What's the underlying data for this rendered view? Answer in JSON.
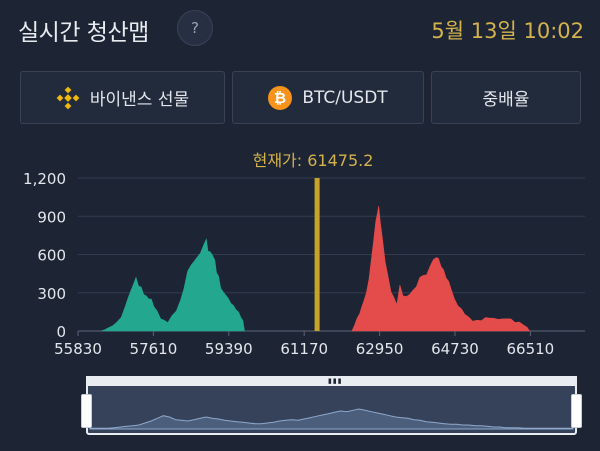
{
  "header": {
    "title": "실시간 청산맵",
    "help_label": "?",
    "datetime": "5월 13일 10:02"
  },
  "controls": {
    "exchange_label": "바이낸스 선물",
    "exchange_icon": "binance-logo-icon",
    "pair_label": "BTC/USDT",
    "pair_icon": "bitcoin-icon",
    "leverage_label": "중배율"
  },
  "colors": {
    "background": "#1d2535",
    "long_series": "#23a78e",
    "short_series": "#e34c4a",
    "price_line": "#c9a227",
    "accent_text": "#d4b24c"
  },
  "price_label": "현재가: 61475.2",
  "chart_data": {
    "type": "area",
    "current_price": 61475.2,
    "xlim": [
      55830,
      67800
    ],
    "ylim": [
      0,
      1200
    ],
    "xticks": [
      {
        "value": 55830,
        "label": "55830"
      },
      {
        "value": 57610,
        "label": "57610"
      },
      {
        "value": 59390,
        "label": "59390"
      },
      {
        "value": 61170,
        "label": "61170"
      },
      {
        "value": 62950,
        "label": "62950"
      },
      {
        "value": 64730,
        "label": "64730"
      },
      {
        "value": 66510,
        "label": "66510"
      }
    ],
    "yticks": [
      {
        "value": 0,
        "label": "0"
      },
      {
        "value": 300,
        "label": "300"
      },
      {
        "value": 600,
        "label": "600"
      },
      {
        "value": 900,
        "label": "900"
      },
      {
        "value": 1200,
        "label": "1,200"
      }
    ],
    "grid": true,
    "series": [
      {
        "color": "#23a78e",
        "points": [
          [
            56370,
            0
          ],
          [
            56450,
            8
          ],
          [
            56550,
            25
          ],
          [
            56650,
            55
          ],
          [
            56750,
            70
          ],
          [
            56850,
            120
          ],
          [
            56950,
            195
          ],
          [
            57020,
            280
          ],
          [
            57100,
            335
          ],
          [
            57150,
            390
          ],
          [
            57200,
            420
          ],
          [
            57260,
            365
          ],
          [
            57320,
            345
          ],
          [
            57380,
            300
          ],
          [
            57440,
            275
          ],
          [
            57500,
            265
          ],
          [
            57560,
            250
          ],
          [
            57620,
            205
          ],
          [
            57700,
            155
          ],
          [
            57780,
            110
          ],
          [
            57860,
            85
          ],
          [
            57950,
            80
          ],
          [
            58050,
            120
          ],
          [
            58150,
            170
          ],
          [
            58250,
            240
          ],
          [
            58330,
            345
          ],
          [
            58420,
            470
          ],
          [
            58500,
            530
          ],
          [
            58560,
            540
          ],
          [
            58640,
            590
          ],
          [
            58720,
            610
          ],
          [
            58800,
            690
          ],
          [
            58860,
            720
          ],
          [
            58900,
            640
          ],
          [
            58950,
            620
          ],
          [
            59000,
            610
          ],
          [
            59060,
            555
          ],
          [
            59100,
            470
          ],
          [
            59150,
            430
          ],
          [
            59200,
            350
          ],
          [
            59260,
            305
          ],
          [
            59320,
            295
          ],
          [
            59380,
            255
          ],
          [
            59440,
            230
          ],
          [
            59500,
            200
          ],
          [
            59560,
            180
          ],
          [
            59620,
            150
          ],
          [
            59680,
            115
          ],
          [
            59720,
            85
          ],
          [
            59760,
            0
          ]
        ]
      },
      {
        "color": "#e34c4a",
        "points": [
          [
            62300,
            0
          ],
          [
            62360,
            60
          ],
          [
            62420,
            100
          ],
          [
            62480,
            150
          ],
          [
            62530,
            190
          ],
          [
            62580,
            250
          ],
          [
            62640,
            300
          ],
          [
            62700,
            420
          ],
          [
            62760,
            570
          ],
          [
            62810,
            720
          ],
          [
            62860,
            860
          ],
          [
            62900,
            940
          ],
          [
            62930,
            980
          ],
          [
            62970,
            860
          ],
          [
            63020,
            720
          ],
          [
            63080,
            560
          ],
          [
            63150,
            430
          ],
          [
            63220,
            320
          ],
          [
            63290,
            260
          ],
          [
            63360,
            220
          ],
          [
            63430,
            360
          ],
          [
            63500,
            290
          ],
          [
            63580,
            270
          ],
          [
            63660,
            300
          ],
          [
            63740,
            320
          ],
          [
            63820,
            360
          ],
          [
            63900,
            420
          ],
          [
            63980,
            450
          ],
          [
            64060,
            440
          ],
          [
            64140,
            520
          ],
          [
            64220,
            560
          ],
          [
            64290,
            590
          ],
          [
            64340,
            570
          ],
          [
            64400,
            520
          ],
          [
            64460,
            480
          ],
          [
            64520,
            430
          ],
          [
            64580,
            390
          ],
          [
            64650,
            330
          ],
          [
            64720,
            250
          ],
          [
            64800,
            210
          ],
          [
            64880,
            175
          ],
          [
            64960,
            145
          ],
          [
            65050,
            110
          ],
          [
            65150,
            90
          ],
          [
            65250,
            85
          ],
          [
            65350,
            95
          ],
          [
            65450,
            105
          ],
          [
            65550,
            115
          ],
          [
            65650,
            100
          ],
          [
            65750,
            105
          ],
          [
            65850,
            95
          ],
          [
            65950,
            110
          ],
          [
            66050,
            95
          ],
          [
            66150,
            80
          ],
          [
            66250,
            70
          ],
          [
            66350,
            60
          ],
          [
            66430,
            30
          ],
          [
            66490,
            0
          ]
        ]
      }
    ]
  },
  "navigator": {
    "handle_icon": "drag-grip-icon",
    "profile": [
      1,
      1,
      1,
      1,
      2,
      3,
      4,
      5,
      6,
      9,
      12,
      16,
      20,
      18,
      14,
      13,
      12,
      14,
      16,
      18,
      16,
      15,
      13,
      12,
      11,
      10,
      9,
      8,
      8,
      9,
      10,
      12,
      13,
      14,
      13,
      15,
      17,
      19,
      21,
      23,
      25,
      27,
      26,
      28,
      30,
      28,
      26,
      24,
      22,
      20,
      18,
      17,
      16,
      14,
      13,
      11,
      10,
      9,
      8,
      7,
      7,
      6,
      6,
      5,
      5,
      4,
      3,
      3,
      2,
      2,
      2,
      1,
      1,
      1,
      1,
      1,
      1,
      1,
      1,
      1
    ]
  }
}
